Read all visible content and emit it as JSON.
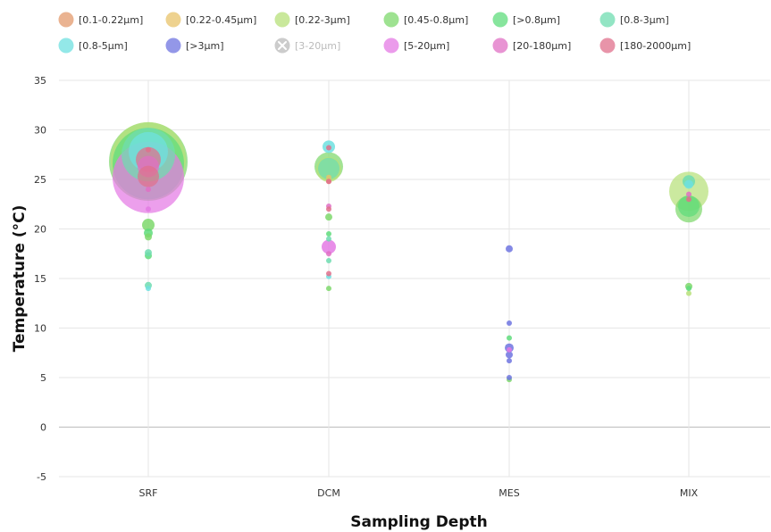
{
  "chart_data": {
    "type": "scatter",
    "title": "",
    "xlabel": "Sampling Depth",
    "ylabel": "Temperature (°C)",
    "categories": [
      "SRF",
      "DCM",
      "MES",
      "MIX"
    ],
    "ylim": [
      -5,
      35
    ],
    "yticks": [
      -5,
      0,
      5,
      10,
      15,
      20,
      25,
      30,
      35
    ],
    "grid": true,
    "legend_position": "top",
    "series": [
      {
        "name": "[0.1-0.22μm]",
        "color": "#e39a6c",
        "visible": true,
        "points": [
          {
            "x": "DCM",
            "y": 24.8,
            "size": 3
          }
        ]
      },
      {
        "name": "[0.22-0.45μm]",
        "color": "#e8c36a",
        "visible": true,
        "points": [
          {
            "x": "DCM",
            "y": 25.2,
            "size": 3
          }
        ]
      },
      {
        "name": "[0.22-3μm]",
        "color": "#b7e07a",
        "visible": true,
        "points": [
          {
            "x": "SRF",
            "y": 27.0,
            "size": 42
          },
          {
            "x": "DCM",
            "y": 26.0,
            "size": 14
          },
          {
            "x": "MIX",
            "y": 23.8,
            "size": 22
          },
          {
            "x": "MIX",
            "y": 13.5,
            "size": 3
          }
        ]
      },
      {
        "name": "[0.45-0.8μm]",
        "color": "#7ed86c",
        "visible": true,
        "points": [
          {
            "x": "SRF",
            "y": 26.8,
            "size": 44
          },
          {
            "x": "SRF",
            "y": 20.4,
            "size": 7
          },
          {
            "x": "SRF",
            "y": 19.2,
            "size": 4
          },
          {
            "x": "DCM",
            "y": 26.3,
            "size": 16
          },
          {
            "x": "DCM",
            "y": 21.2,
            "size": 4
          },
          {
            "x": "DCM",
            "y": 14.0,
            "size": 3
          },
          {
            "x": "MES",
            "y": 4.8,
            "size": 3
          },
          {
            "x": "MIX",
            "y": 22.0,
            "size": 15
          },
          {
            "x": "MIX",
            "y": 14.2,
            "size": 4
          }
        ]
      },
      {
        "name": "[>0.8μm]",
        "color": "#5fdc7c",
        "visible": true,
        "points": [
          {
            "x": "SRF",
            "y": 26.6,
            "size": 40
          },
          {
            "x": "SRF",
            "y": 19.6,
            "size": 5
          },
          {
            "x": "SRF",
            "y": 17.3,
            "size": 4
          },
          {
            "x": "DCM",
            "y": 19.5,
            "size": 3
          },
          {
            "x": "MES",
            "y": 9.0,
            "size": 3
          },
          {
            "x": "MIX",
            "y": 22.3,
            "size": 12
          },
          {
            "x": "MIX",
            "y": 14.0,
            "size": 3
          }
        ]
      },
      {
        "name": "[0.8-3μm]",
        "color": "#6fdcb0",
        "visible": true,
        "points": [
          {
            "x": "SRF",
            "y": 27.5,
            "size": 30
          },
          {
            "x": "SRF",
            "y": 17.6,
            "size": 4
          },
          {
            "x": "SRF",
            "y": 14.3,
            "size": 4
          },
          {
            "x": "DCM",
            "y": 26.1,
            "size": 12
          },
          {
            "x": "DCM",
            "y": 19.0,
            "size": 3
          },
          {
            "x": "DCM",
            "y": 16.8,
            "size": 3
          },
          {
            "x": "MIX",
            "y": 24.8,
            "size": 7
          }
        ]
      },
      {
        "name": "[0.8-5μm]",
        "color": "#6fe0e0",
        "visible": true,
        "points": [
          {
            "x": "SRF",
            "y": 27.8,
            "size": 22
          },
          {
            "x": "SRF",
            "y": 14.0,
            "size": 3
          },
          {
            "x": "DCM",
            "y": 28.3,
            "size": 7
          },
          {
            "x": "DCM",
            "y": 15.2,
            "size": 3
          },
          {
            "x": "MIX",
            "y": 24.5,
            "size": 5
          }
        ]
      },
      {
        "name": "[>3μm]",
        "color": "#6f74e0",
        "visible": true,
        "points": [
          {
            "x": "MES",
            "y": 18.0,
            "size": 4
          },
          {
            "x": "MES",
            "y": 10.5,
            "size": 3
          },
          {
            "x": "MES",
            "y": 8.0,
            "size": 5
          },
          {
            "x": "MES",
            "y": 7.3,
            "size": 4
          },
          {
            "x": "MES",
            "y": 6.7,
            "size": 3
          },
          {
            "x": "MES",
            "y": 5.0,
            "size": 3
          }
        ]
      },
      {
        "name": "[3-20μm]",
        "color": "#cccccc",
        "visible": false,
        "points": []
      },
      {
        "name": "[5-20μm]",
        "color": "#e47ae4",
        "visible": true,
        "points": [
          {
            "x": "SRF",
            "y": 25.2,
            "size": 40
          },
          {
            "x": "SRF",
            "y": 22.0,
            "size": 3
          },
          {
            "x": "DCM",
            "y": 18.2,
            "size": 8
          },
          {
            "x": "MES",
            "y": 7.8,
            "size": 3
          }
        ]
      },
      {
        "name": "[20-180μm]",
        "color": "#e070c4",
        "visible": true,
        "points": [
          {
            "x": "SRF",
            "y": 26.3,
            "size": 12
          },
          {
            "x": "SRF",
            "y": 24.0,
            "size": 3
          },
          {
            "x": "DCM",
            "y": 22.3,
            "size": 3
          },
          {
            "x": "DCM",
            "y": 17.5,
            "size": 3
          },
          {
            "x": "MIX",
            "y": 23.5,
            "size": 3
          }
        ]
      },
      {
        "name": "[180-2000μm]",
        "color": "#e0708c",
        "visible": true,
        "points": [
          {
            "x": "SRF",
            "y": 27.0,
            "size": 14
          },
          {
            "x": "SRF",
            "y": 25.3,
            "size": 12
          },
          {
            "x": "SRF",
            "y": 28.0,
            "size": 3
          },
          {
            "x": "DCM",
            "y": 28.2,
            "size": 3
          },
          {
            "x": "DCM",
            "y": 24.8,
            "size": 3
          },
          {
            "x": "DCM",
            "y": 22.0,
            "size": 3
          },
          {
            "x": "DCM",
            "y": 15.5,
            "size": 3
          },
          {
            "x": "MIX",
            "y": 23.0,
            "size": 3
          }
        ]
      }
    ]
  }
}
